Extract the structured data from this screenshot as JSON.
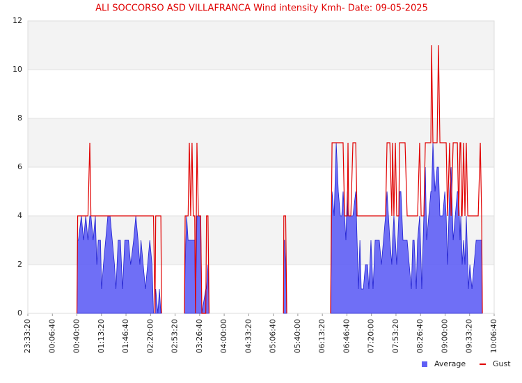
{
  "chart_data": {
    "type": "area-line",
    "title": "ALI SOCCORSO ASD VILLAFRANCA Wind intensity Kmh- Date: 09-05-2025",
    "xlim": [
      "23:33:20",
      "10:06:40"
    ],
    "xticks": [
      "23:33:20",
      "00:06:40",
      "00:40:00",
      "01:13:20",
      "01:46:40",
      "02:20:00",
      "02:53:20",
      "03:26:40",
      "04:00:00",
      "04:33:20",
      "05:06:40",
      "05:40:00",
      "06:13:20",
      "06:46:40",
      "07:20:00",
      "07:53:20",
      "08:26:40",
      "09:00:00",
      "09:33:20",
      "10:06:40"
    ],
    "ylim": [
      0,
      12
    ],
    "yticks": [
      0,
      2,
      4,
      6,
      8,
      10,
      12
    ],
    "grid": true,
    "legend": "lower right",
    "x": [
      "00:40:00",
      "00:41:00",
      "00:42:00",
      "00:46:00",
      "00:49:00",
      "00:52:00",
      "00:55:00",
      "00:57:30",
      "00:59:00",
      "01:02:00",
      "01:05:00",
      "01:07:00",
      "01:09:00",
      "01:12:00",
      "01:13:30",
      "01:16:00",
      "01:19:00",
      "01:22:00",
      "01:25:00",
      "01:28:00",
      "01:31:00",
      "01:33:00",
      "01:36:00",
      "01:39:00",
      "01:42:00",
      "01:45:00",
      "01:48:00",
      "01:50:00",
      "01:53:00",
      "01:57:00",
      "02:00:00",
      "02:03:00",
      "02:05:30",
      "02:07:00",
      "02:10:00",
      "02:13:00",
      "02:16:00",
      "02:19:00",
      "02:22:00",
      "02:24:00",
      "02:26:00",
      "02:27:00",
      "02:30:00",
      "02:32:00",
      "02:34:00",
      "02:35:00",
      "02:45:00",
      "03:06:00",
      "03:07:00",
      "03:09:00",
      "03:11:00",
      "03:12:40",
      "03:14:30",
      "03:16:20",
      "03:18:00",
      "03:20:00",
      "03:21:00",
      "03:23:00",
      "03:25:00",
      "03:28:00",
      "03:29:40",
      "03:35:00",
      "03:36:00",
      "03:38:00",
      "03:39:30",
      "03:50:00",
      "05:20:30",
      "05:21:00",
      "05:22:00",
      "05:23:30",
      "05:25:00",
      "05:40:00",
      "06:24:30",
      "06:26:30",
      "06:29:20",
      "06:32:10",
      "06:35:00",
      "06:37:50",
      "06:39:40",
      "06:41:30",
      "06:43:30",
      "06:45:20",
      "06:47:10",
      "06:48:10",
      "06:49:10",
      "06:52:00",
      "06:54:50",
      "06:58:40",
      "07:00:30",
      "07:02:20",
      "07:04:20",
      "07:06:10",
      "07:09:00",
      "07:11:50",
      "07:14:40",
      "07:16:30",
      "07:19:20",
      "07:22:10",
      "07:25:00",
      "07:27:50",
      "07:30:40",
      "07:33:30",
      "07:36:20",
      "07:39:10",
      "07:41:10",
      "07:45:00",
      "07:47:40",
      "07:48:40",
      "07:50:30",
      "07:52:30",
      "07:54:20",
      "07:57:10",
      "07:58:10",
      "08:00:00",
      "08:02:50",
      "08:05:40",
      "08:08:30",
      "08:11:20",
      "08:14:10",
      "08:16:10",
      "08:18:00",
      "08:20:50",
      "08:22:40",
      "08:25:30",
      "08:27:30",
      "08:28:20",
      "08:31:10",
      "08:33:10",
      "08:35:00",
      "08:37:50",
      "08:40:40",
      "08:41:40",
      "08:43:30",
      "08:46:20",
      "08:49:10",
      "08:51:00",
      "08:53:00",
      "08:56:50",
      "08:59:40",
      "09:01:30",
      "09:03:20",
      "09:06:10",
      "09:08:10",
      "09:11:00",
      "09:13:50",
      "09:16:40",
      "09:18:30",
      "09:20:20",
      "09:21:20",
      "09:22:20",
      "09:23:10",
      "09:25:10",
      "09:27:00",
      "09:28:50",
      "09:30:50",
      "09:31:40",
      "09:33:40",
      "09:36:30",
      "09:39:20",
      "09:42:10",
      "09:45:00",
      "09:47:50",
      "09:49:40",
      "09:50:40"
    ],
    "series": [
      {
        "name": "Average",
        "color": "#5f5ff5",
        "values": [
          0,
          3,
          3,
          4,
          3,
          4,
          3,
          4,
          4,
          3,
          4,
          2,
          3,
          3,
          1,
          2,
          3,
          4,
          4,
          3,
          2,
          1,
          3,
          3,
          1,
          3,
          3,
          3,
          2,
          3,
          4,
          3,
          2,
          3,
          2,
          1,
          2,
          3,
          2,
          0,
          0,
          1,
          0,
          1,
          0,
          0,
          null,
          0,
          2,
          4,
          3,
          3,
          3,
          3,
          3,
          3,
          0,
          4,
          4,
          4,
          0,
          1,
          1,
          2,
          0,
          null,
          0,
          3,
          3,
          2,
          0,
          null,
          0,
          5,
          4,
          7,
          5,
          4,
          4,
          5,
          4,
          3,
          5,
          4,
          4,
          4,
          4,
          5,
          3,
          1,
          3,
          1,
          1,
          2,
          2,
          1,
          3,
          1,
          3,
          3,
          3,
          2,
          3,
          4,
          5,
          3,
          2,
          3,
          4,
          3,
          2,
          4,
          5,
          5,
          3,
          3,
          3,
          2,
          1,
          3,
          3,
          1,
          3,
          4,
          2,
          1,
          4,
          6,
          3,
          4,
          5,
          5,
          7,
          5,
          6,
          6,
          4,
          4,
          5,
          4,
          2,
          5,
          6,
          3,
          4,
          5,
          5,
          3,
          4,
          3,
          2,
          3,
          2,
          4,
          2,
          1,
          2,
          1,
          2,
          3,
          3,
          3,
          3,
          0
        ]
      },
      {
        "name": "Gust",
        "color": "#e00000",
        "values": [
          0,
          4,
          4,
          4,
          4,
          4,
          4,
          7,
          4,
          4,
          4,
          4,
          4,
          4,
          4,
          4,
          4,
          4,
          4,
          4,
          4,
          4,
          4,
          4,
          4,
          4,
          4,
          4,
          4,
          4,
          4,
          4,
          4,
          4,
          4,
          4,
          4,
          4,
          4,
          4,
          0,
          4,
          4,
          4,
          4,
          0,
          null,
          0,
          4,
          4,
          4,
          7,
          4,
          7,
          4,
          4,
          0,
          7,
          4,
          4,
          0,
          0,
          4,
          4,
          0,
          null,
          0,
          4,
          4,
          4,
          0,
          null,
          0,
          7,
          7,
          7,
          7,
          7,
          7,
          7,
          4,
          4,
          4,
          7,
          4,
          4,
          7,
          7,
          4,
          4,
          4,
          4,
          4,
          4,
          4,
          4,
          4,
          4,
          4,
          4,
          4,
          4,
          4,
          4,
          7,
          7,
          4,
          7,
          4,
          7,
          4,
          4,
          7,
          7,
          7,
          7,
          4,
          4,
          4,
          4,
          4,
          4,
          4,
          7,
          4,
          4,
          4,
          7,
          7,
          7,
          7,
          11,
          7,
          7,
          7,
          11,
          7,
          7,
          7,
          7,
          4,
          7,
          4,
          7,
          7,
          7,
          4,
          7,
          7,
          4,
          4,
          7,
          4,
          7,
          4,
          4,
          4,
          4,
          4,
          4,
          4,
          7,
          4,
          0
        ]
      }
    ]
  }
}
